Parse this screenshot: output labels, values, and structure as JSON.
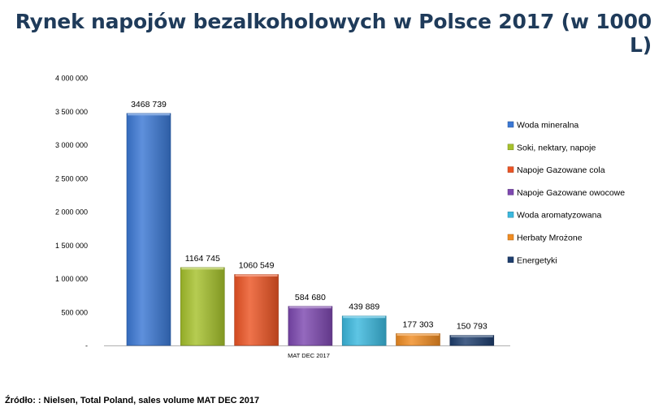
{
  "chart_data": {
    "type": "bar",
    "title": "Rynek napojów bezalkoholowych w Polsce 2017 (w 1000 L)",
    "xlabel": "",
    "ylabel": "",
    "category": "MAT DEC 2017",
    "ylim": [
      0,
      4000000
    ],
    "yticks": [
      {
        "value": 0,
        "label": "-"
      },
      {
        "value": 500000,
        "label": "500 000"
      },
      {
        "value": 1000000,
        "label": "1 000 000"
      },
      {
        "value": 1500000,
        "label": "1 500 000"
      },
      {
        "value": 2000000,
        "label": "2 000 000"
      },
      {
        "value": 2500000,
        "label": "2 500 000"
      },
      {
        "value": 3000000,
        "label": "3 000 000"
      },
      {
        "value": 3500000,
        "label": "3 500 000"
      },
      {
        "value": 4000000,
        "label": "4 000 000"
      }
    ],
    "grid": false,
    "legend_position": "right",
    "series": [
      {
        "name": "Woda mineralna",
        "value": 3468739,
        "label": "3468 739",
        "color": "#3b78d4"
      },
      {
        "name": "Soki, nektary, napoje",
        "value": 1164745,
        "label": "1164 745",
        "color": "#a6c12c"
      },
      {
        "name": "Napoje Gazowane cola",
        "value": 1060549,
        "label": "1060 549",
        "color": "#ec5424"
      },
      {
        "name": "Napoje Gazowane owocowe",
        "value": 584680,
        "label": "584 680",
        "color": "#7d48b0"
      },
      {
        "name": "Woda aromatyzowana",
        "value": 439889,
        "label": "439 889",
        "color": "#3bb8de"
      },
      {
        "name": "Herbaty Mrożone",
        "value": 177303,
        "label": "177 303",
        "color": "#f08c22"
      },
      {
        "name": "Energetyki",
        "value": 150793,
        "label": "150 793",
        "color": "#1e3e6e"
      }
    ]
  },
  "source": "Źródło: : Nielsen, Total Poland, sales volume MAT DEC 2017"
}
